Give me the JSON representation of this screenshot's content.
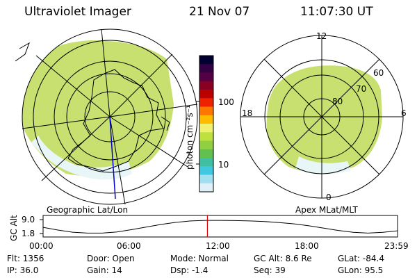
{
  "header": {
    "instrument": "Ultraviolet Imager",
    "date": "21 Nov 07",
    "time": "11:07:30 UT"
  },
  "colorbar": {
    "label": "photon cm⁻²s⁻¹",
    "ticks": [
      "100",
      "10"
    ],
    "colors": [
      "#000033",
      "#330044",
      "#550044",
      "#880022",
      "#bb0000",
      "#ee2200",
      "#ff7700",
      "#ffbb00",
      "#f0f070",
      "#c0e040",
      "#90d040",
      "#60c050",
      "#40c0a0",
      "#40c8e0",
      "#a0e0f0",
      "#e0f0f8"
    ]
  },
  "map_left": {
    "caption": "Geographic Lat/Lon",
    "fill": "#c8e070",
    "accent": "#70c870"
  },
  "map_right": {
    "caption": "Apex MLat/MLT",
    "mlt_labels": {
      "top": "12",
      "bottom": "0",
      "left": "18",
      "right": "6"
    },
    "lat_labels": [
      "60",
      "70",
      "80"
    ]
  },
  "chart_data": {
    "type": "line",
    "title": "",
    "ylabel": "GC Alt",
    "ytick_labels": [
      "9.0",
      "1.8"
    ],
    "ylim": [
      1.8,
      9.0
    ],
    "xtick_labels": [
      "00:00",
      "06:00",
      "12:00",
      "18:00",
      "23:59"
    ],
    "x_hours": [
      0,
      1,
      2,
      3,
      4,
      5,
      6,
      7,
      8,
      9,
      10,
      11,
      12,
      13,
      14,
      15,
      16,
      17,
      18,
      19,
      20,
      21,
      22,
      23,
      24
    ],
    "series": [
      {
        "values": [
          5.0,
          3.6,
          2.5,
          2.0,
          2.0,
          2.6,
          3.8,
          5.2,
          6.5,
          7.6,
          8.3,
          8.6,
          8.6,
          8.5,
          8.3,
          8.0,
          7.5,
          6.8,
          5.8,
          4.6,
          3.4,
          2.4,
          2.0,
          2.4,
          3.2
        ]
      }
    ],
    "current_time_hours": 11.125,
    "current_color": "#dd0000"
  },
  "status": {
    "flt": "Flt: 1356",
    "ip": "IP: 36.0",
    "door": "Door: Open",
    "gain": "Gain: 14",
    "mode": "Mode: Normal",
    "dsp": "Dsp:     -1.4",
    "gcalt": "GC Alt: 8.6 Re",
    "seq": "Seq: 39",
    "glat": "GLat:   -84.4",
    "glon": "GLon:    95.5"
  }
}
